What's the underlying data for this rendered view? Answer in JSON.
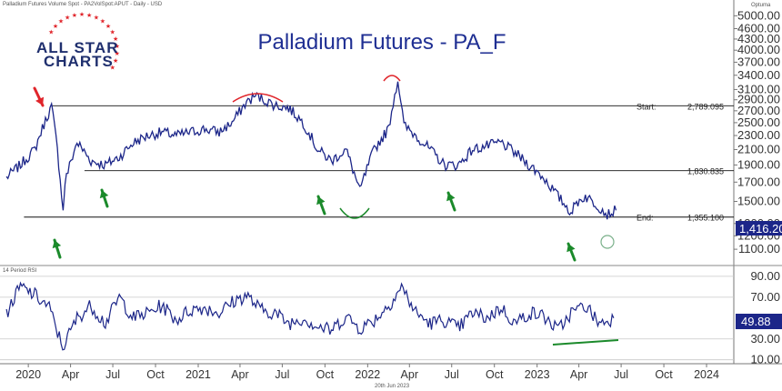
{
  "header_text": "Palladium Futures Volume Spot - PA2VolSpot:APUT - Daily - USD",
  "brand": {
    "line1": "ALL STAR",
    "line2": "CHARTS"
  },
  "watermark_vendor": "Optuma",
  "footer_date": "20th Jun 2023",
  "colors": {
    "price": "#1c2689",
    "arrow_red": "#e0252b",
    "arrow_green": "#1b8a2b",
    "arc_red": "#e0252b",
    "arc_green": "#1b8a2b",
    "title": "#1f2f93",
    "last_box": "#1c2689"
  },
  "chart_data": [
    {
      "type": "line",
      "title": "Palladium Futures - PA_F",
      "ylim": [
        1050,
        5100
      ],
      "yticks": [
        "5000.00",
        "4600.00",
        "4300.00",
        "4000.00",
        "3700.00",
        "3400.00",
        "3100.00",
        "2900.00",
        "2700.00",
        "2500.00",
        "2300.00",
        "2100.00",
        "1900.00",
        "1700.00",
        "1500.00",
        "1300.00",
        "1200.00",
        "1100.00"
      ],
      "xticks": [
        "2020",
        "Apr",
        "Jul",
        "Oct",
        "2021",
        "Apr",
        "Jul",
        "Oct",
        "2022",
        "Apr",
        "Jul",
        "Oct",
        "2023",
        "Apr",
        "Jul",
        "Oct",
        "2024"
      ],
      "last_value": "1,416.20",
      "levels": [
        {
          "label": "Start:",
          "value_text": "2,789.095",
          "value": 2789.095
        },
        {
          "label": "",
          "value_text": "1,830.835",
          "value": 1830.835
        },
        {
          "label": "End:",
          "value_text": "1,355.100",
          "value": 1355.1
        }
      ],
      "series": [
        {
          "x": [
            "2019-11",
            "2019-12",
            "2020-01",
            "2020-02-20",
            "2020-03-16",
            "2020-03-20",
            "2020-04",
            "2020-05",
            "2020-06",
            "2020-07",
            "2020-08",
            "2020-09",
            "2020-10",
            "2020-11",
            "2020-12",
            "2021-01",
            "2021-02",
            "2021-03",
            "2021-04",
            "2021-05-04",
            "2021-06",
            "2021-07",
            "2021-08",
            "2021-09",
            "2021-10",
            "2021-11",
            "2021-12-15",
            "2022-01",
            "2022-02",
            "2022-03-07",
            "2022-03-20",
            "2022-04",
            "2022-05",
            "2022-06",
            "2022-07",
            "2022-08",
            "2022-09",
            "2022-10",
            "2022-11",
            "2022-12",
            "2023-01",
            "2023-02",
            "2023-03-15",
            "2023-03-30",
            "2023-04",
            "2023-05",
            "2023-06-01",
            "2023-06-20"
          ],
          "values": [
            1750,
            1900,
            2100,
            2780,
            1400,
            1700,
            2200,
            1950,
            1900,
            2000,
            2200,
            2300,
            2350,
            2300,
            2350,
            2400,
            2350,
            2500,
            2850,
            2980,
            2800,
            2750,
            2500,
            2100,
            1950,
            2100,
            1600,
            2100,
            2400,
            3300,
            2450,
            2300,
            2100,
            1900,
            1900,
            2100,
            2150,
            2200,
            2050,
            1900,
            1750,
            1550,
            1400,
            1500,
            1550,
            1450,
            1380,
            1416
          ]
        }
      ]
    },
    {
      "type": "line",
      "title": "14 Period RSI",
      "ylim": [
        8,
        96
      ],
      "yticks": [
        "90.00",
        "70.00",
        "30.00",
        "10.00"
      ],
      "last_value": "49.88",
      "series": [
        {
          "x": [
            "2019-11",
            "2019-12",
            "2020-01",
            "2020-02",
            "2020-03",
            "2020-04",
            "2020-05",
            "2020-06",
            "2020-07",
            "2020-08",
            "2020-09",
            "2020-10",
            "2020-11",
            "2020-12",
            "2021-01",
            "2021-02",
            "2021-03",
            "2021-04",
            "2021-05",
            "2021-06",
            "2021-07",
            "2021-08",
            "2021-09",
            "2021-10",
            "2021-11",
            "2021-12",
            "2022-01",
            "2022-02",
            "2022-03",
            "2022-04",
            "2022-05",
            "2022-06",
            "2022-07",
            "2022-08",
            "2022-09",
            "2022-10",
            "2022-11",
            "2022-12",
            "2023-01",
            "2023-02",
            "2023-03",
            "2023-04",
            "2023-05",
            "2023-06"
          ],
          "values": [
            55,
            80,
            72,
            60,
            22,
            50,
            62,
            45,
            70,
            50,
            55,
            62,
            48,
            58,
            60,
            55,
            65,
            72,
            58,
            55,
            45,
            50,
            42,
            38,
            52,
            40,
            48,
            62,
            80,
            55,
            45,
            48,
            40,
            55,
            50,
            60,
            45,
            55,
            52,
            38,
            55,
            62,
            45,
            50
          ]
        }
      ]
    }
  ]
}
